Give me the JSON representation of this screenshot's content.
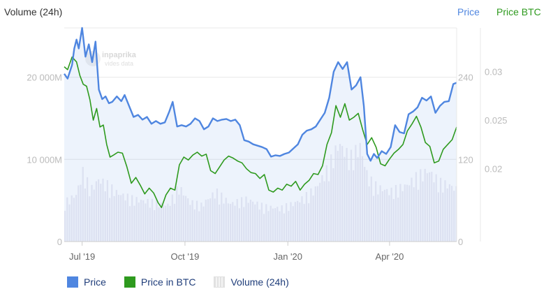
{
  "header": {
    "left_title": "Volume (24h)",
    "right_links": [
      "Price",
      "Price BTC"
    ]
  },
  "colors": {
    "price": "#4f86e0",
    "price_btc": "#2e9a1e",
    "volume": "#d5dbee",
    "grid": "#e8e8e8",
    "tick_text": "#bbbbbb",
    "legend_text": "#1f3d7a"
  },
  "watermark": {
    "brand": "inpaprika",
    "tagline": "vides data"
  },
  "legend": [
    {
      "label": "Price",
      "icon": "blue-square-icon"
    },
    {
      "label": "Price in BTC",
      "icon": "green-square-icon"
    },
    {
      "label": "Volume (24h)",
      "icon": "striped-square-icon"
    }
  ],
  "chart_data": {
    "type": "line",
    "x_ticks": [
      "Jul '19",
      "Oct '19",
      "Jan '20",
      "Apr '20"
    ],
    "x_tick_dates": [
      "2019-07-01",
      "2019-10-01",
      "2020-01-01",
      "2020-04-01"
    ],
    "x_range": [
      "2019-06-15",
      "2020-05-31"
    ],
    "y_left": {
      "label": "Volume (24h)",
      "ticks": [
        "0",
        "10 000M",
        "20 000M"
      ],
      "tick_values": [
        0,
        10000,
        20000
      ],
      "range": [
        0,
        26000
      ],
      "unit": "M"
    },
    "y_price": {
      "label": "Price",
      "ticks": [
        "0",
        "120",
        "240"
      ],
      "tick_values": [
        0,
        120,
        240
      ],
      "range": [
        0,
        312
      ]
    },
    "y_btc": {
      "label": "Price BTC",
      "ticks": [
        "0.02",
        "0.025",
        "0.03"
      ],
      "tick_values": [
        0.02,
        0.025,
        0.03
      ],
      "range": [
        0.0125,
        0.0345
      ]
    },
    "grid": true,
    "legend_position": "bottom-left",
    "series": [
      {
        "name": "Price",
        "axis": "price",
        "points": [
          [
            "2019-06-15",
            245
          ],
          [
            "2019-06-18",
            238
          ],
          [
            "2019-06-22",
            258
          ],
          [
            "2019-06-24",
            282
          ],
          [
            "2019-06-26",
            295
          ],
          [
            "2019-06-28",
            282
          ],
          [
            "2019-07-01",
            312
          ],
          [
            "2019-07-04",
            270
          ],
          [
            "2019-07-07",
            288
          ],
          [
            "2019-07-10",
            262
          ],
          [
            "2019-07-13",
            292
          ],
          [
            "2019-07-16",
            222
          ],
          [
            "2019-07-19",
            208
          ],
          [
            "2019-07-22",
            212
          ],
          [
            "2019-07-25",
            202
          ],
          [
            "2019-07-28",
            204
          ],
          [
            "2019-08-01",
            212
          ],
          [
            "2019-08-05",
            205
          ],
          [
            "2019-08-08",
            214
          ],
          [
            "2019-08-12",
            198
          ],
          [
            "2019-08-16",
            182
          ],
          [
            "2019-08-20",
            185
          ],
          [
            "2019-08-24",
            178
          ],
          [
            "2019-08-28",
            182
          ],
          [
            "2019-09-01",
            172
          ],
          [
            "2019-09-05",
            176
          ],
          [
            "2019-09-09",
            172
          ],
          [
            "2019-09-13",
            174
          ],
          [
            "2019-09-17",
            190
          ],
          [
            "2019-09-20",
            204
          ],
          [
            "2019-09-24",
            168
          ],
          [
            "2019-09-28",
            170
          ],
          [
            "2019-10-02",
            168
          ],
          [
            "2019-10-06",
            172
          ],
          [
            "2019-10-10",
            180
          ],
          [
            "2019-10-14",
            176
          ],
          [
            "2019-10-18",
            164
          ],
          [
            "2019-10-22",
            168
          ],
          [
            "2019-10-26",
            180
          ],
          [
            "2019-10-30",
            176
          ],
          [
            "2019-11-03",
            178
          ],
          [
            "2019-11-07",
            179
          ],
          [
            "2019-11-11",
            176
          ],
          [
            "2019-11-15",
            178
          ],
          [
            "2019-11-19",
            170
          ],
          [
            "2019-11-23",
            148
          ],
          [
            "2019-11-27",
            146
          ],
          [
            "2019-12-01",
            142
          ],
          [
            "2019-12-05",
            140
          ],
          [
            "2019-12-09",
            138
          ],
          [
            "2019-12-13",
            135
          ],
          [
            "2019-12-17",
            124
          ],
          [
            "2019-12-21",
            126
          ],
          [
            "2019-12-25",
            125
          ],
          [
            "2019-12-29",
            128
          ],
          [
            "2020-01-02",
            130
          ],
          [
            "2020-01-06",
            136
          ],
          [
            "2020-01-10",
            142
          ],
          [
            "2020-01-14",
            156
          ],
          [
            "2020-01-18",
            162
          ],
          [
            "2020-01-22",
            164
          ],
          [
            "2020-01-26",
            168
          ],
          [
            "2020-01-30",
            178
          ],
          [
            "2020-02-03",
            188
          ],
          [
            "2020-02-07",
            210
          ],
          [
            "2020-02-11",
            248
          ],
          [
            "2020-02-15",
            262
          ],
          [
            "2020-02-19",
            252
          ],
          [
            "2020-02-23",
            262
          ],
          [
            "2020-02-27",
            222
          ],
          [
            "2020-03-02",
            228
          ],
          [
            "2020-03-06",
            240
          ],
          [
            "2020-03-09",
            198
          ],
          [
            "2020-03-12",
            128
          ],
          [
            "2020-03-15",
            118
          ],
          [
            "2020-03-18",
            128
          ],
          [
            "2020-03-21",
            122
          ],
          [
            "2020-03-25",
            132
          ],
          [
            "2020-03-29",
            128
          ],
          [
            "2020-04-02",
            138
          ],
          [
            "2020-04-06",
            170
          ],
          [
            "2020-04-10",
            160
          ],
          [
            "2020-04-14",
            158
          ],
          [
            "2020-04-18",
            186
          ],
          [
            "2020-04-22",
            190
          ],
          [
            "2020-04-26",
            196
          ],
          [
            "2020-04-30",
            210
          ],
          [
            "2020-05-04",
            206
          ],
          [
            "2020-05-08",
            212
          ],
          [
            "2020-05-12",
            188
          ],
          [
            "2020-05-16",
            198
          ],
          [
            "2020-05-20",
            204
          ],
          [
            "2020-05-24",
            205
          ],
          [
            "2020-05-28",
            230
          ],
          [
            "2020-05-31",
            232
          ]
        ]
      },
      {
        "name": "Price in BTC",
        "axis": "btc",
        "points": [
          [
            "2019-06-15",
            0.0305
          ],
          [
            "2019-06-18",
            0.0302
          ],
          [
            "2019-06-22",
            0.0315
          ],
          [
            "2019-06-26",
            0.031
          ],
          [
            "2019-06-29",
            0.0296
          ],
          [
            "2019-07-02",
            0.0287
          ],
          [
            "2019-07-05",
            0.0285
          ],
          [
            "2019-07-08",
            0.0271
          ],
          [
            "2019-07-11",
            0.025
          ],
          [
            "2019-07-14",
            0.0262
          ],
          [
            "2019-07-17",
            0.0243
          ],
          [
            "2019-07-20",
            0.0245
          ],
          [
            "2019-07-23",
            0.0225
          ],
          [
            "2019-07-26",
            0.0212
          ],
          [
            "2019-07-29",
            0.0214
          ],
          [
            "2019-08-02",
            0.0217
          ],
          [
            "2019-08-06",
            0.0216
          ],
          [
            "2019-08-10",
            0.0202
          ],
          [
            "2019-08-14",
            0.0185
          ],
          [
            "2019-08-18",
            0.0191
          ],
          [
            "2019-08-22",
            0.0183
          ],
          [
            "2019-08-26",
            0.0174
          ],
          [
            "2019-08-30",
            0.018
          ],
          [
            "2019-09-03",
            0.0175
          ],
          [
            "2019-09-07",
            0.0165
          ],
          [
            "2019-09-10",
            0.016
          ],
          [
            "2019-09-14",
            0.0173
          ],
          [
            "2019-09-18",
            0.018
          ],
          [
            "2019-09-22",
            0.0178
          ],
          [
            "2019-09-26",
            0.0204
          ],
          [
            "2019-09-30",
            0.0212
          ],
          [
            "2019-10-04",
            0.0209
          ],
          [
            "2019-10-08",
            0.0214
          ],
          [
            "2019-10-12",
            0.0217
          ],
          [
            "2019-10-16",
            0.0213
          ],
          [
            "2019-10-20",
            0.0215
          ],
          [
            "2019-10-24",
            0.0198
          ],
          [
            "2019-10-28",
            0.0195
          ],
          [
            "2019-11-01",
            0.0202
          ],
          [
            "2019-11-05",
            0.0209
          ],
          [
            "2019-11-09",
            0.0213
          ],
          [
            "2019-11-13",
            0.0211
          ],
          [
            "2019-11-17",
            0.0208
          ],
          [
            "2019-11-21",
            0.0206
          ],
          [
            "2019-11-25",
            0.02
          ],
          [
            "2019-11-29",
            0.0196
          ],
          [
            "2019-12-03",
            0.0195
          ],
          [
            "2019-12-07",
            0.019
          ],
          [
            "2019-12-11",
            0.0194
          ],
          [
            "2019-12-15",
            0.0178
          ],
          [
            "2019-12-19",
            0.0176
          ],
          [
            "2019-12-23",
            0.018
          ],
          [
            "2019-12-27",
            0.0178
          ],
          [
            "2019-12-31",
            0.0184
          ],
          [
            "2020-01-04",
            0.0182
          ],
          [
            "2020-01-08",
            0.0187
          ],
          [
            "2020-01-12",
            0.0178
          ],
          [
            "2020-01-16",
            0.0184
          ],
          [
            "2020-01-20",
            0.0188
          ],
          [
            "2020-01-24",
            0.0195
          ],
          [
            "2020-01-28",
            0.0194
          ],
          [
            "2020-02-01",
            0.0203
          ],
          [
            "2020-02-05",
            0.0225
          ],
          [
            "2020-02-09",
            0.0237
          ],
          [
            "2020-02-13",
            0.0265
          ],
          [
            "2020-02-17",
            0.0253
          ],
          [
            "2020-02-21",
            0.0267
          ],
          [
            "2020-02-25",
            0.025
          ],
          [
            "2020-02-29",
            0.0253
          ],
          [
            "2020-03-04",
            0.0257
          ],
          [
            "2020-03-08",
            0.024
          ],
          [
            "2020-03-12",
            0.0225
          ],
          [
            "2020-03-16",
            0.0232
          ],
          [
            "2020-03-20",
            0.0222
          ],
          [
            "2020-03-24",
            0.0205
          ],
          [
            "2020-03-28",
            0.0203
          ],
          [
            "2020-04-01",
            0.021
          ],
          [
            "2020-04-05",
            0.0216
          ],
          [
            "2020-04-09",
            0.022
          ],
          [
            "2020-04-13",
            0.0225
          ],
          [
            "2020-04-17",
            0.0239
          ],
          [
            "2020-04-21",
            0.0246
          ],
          [
            "2020-04-25",
            0.0254
          ],
          [
            "2020-04-29",
            0.0243
          ],
          [
            "2020-05-03",
            0.0227
          ],
          [
            "2020-05-07",
            0.0223
          ],
          [
            "2020-05-11",
            0.0206
          ],
          [
            "2020-05-15",
            0.0208
          ],
          [
            "2020-05-19",
            0.022
          ],
          [
            "2020-05-23",
            0.0225
          ],
          [
            "2020-05-27",
            0.023
          ],
          [
            "2020-05-31",
            0.0243
          ]
        ]
      },
      {
        "name": "Volume (24h)",
        "axis": "volume",
        "points": [
          [
            "2019-06-15",
            5200
          ],
          [
            "2019-06-25",
            6200
          ],
          [
            "2019-07-01",
            9200
          ],
          [
            "2019-07-08",
            6800
          ],
          [
            "2019-07-15",
            8200
          ],
          [
            "2019-07-22",
            7600
          ],
          [
            "2019-08-01",
            6400
          ],
          [
            "2019-08-15",
            5600
          ],
          [
            "2019-09-01",
            5200
          ],
          [
            "2019-09-15",
            4800
          ],
          [
            "2019-09-25",
            7200
          ],
          [
            "2019-10-05",
            5200
          ],
          [
            "2019-10-15",
            4800
          ],
          [
            "2019-10-28",
            6600
          ],
          [
            "2019-11-10",
            5000
          ],
          [
            "2019-11-25",
            5600
          ],
          [
            "2019-12-10",
            4600
          ],
          [
            "2019-12-25",
            4400
          ],
          [
            "2020-01-05",
            5000
          ],
          [
            "2020-01-15",
            5800
          ],
          [
            "2020-01-25",
            7000
          ],
          [
            "2020-02-05",
            9600
          ],
          [
            "2020-02-15",
            13000
          ],
          [
            "2020-02-25",
            11000
          ],
          [
            "2020-03-05",
            12600
          ],
          [
            "2020-03-12",
            8400
          ],
          [
            "2020-03-20",
            7200
          ],
          [
            "2020-04-01",
            6600
          ],
          [
            "2020-04-15",
            7400
          ],
          [
            "2020-04-25",
            8600
          ],
          [
            "2020-05-05",
            9400
          ],
          [
            "2020-05-15",
            7800
          ],
          [
            "2020-05-25",
            7400
          ],
          [
            "2020-05-31",
            6800
          ]
        ]
      }
    ]
  }
}
